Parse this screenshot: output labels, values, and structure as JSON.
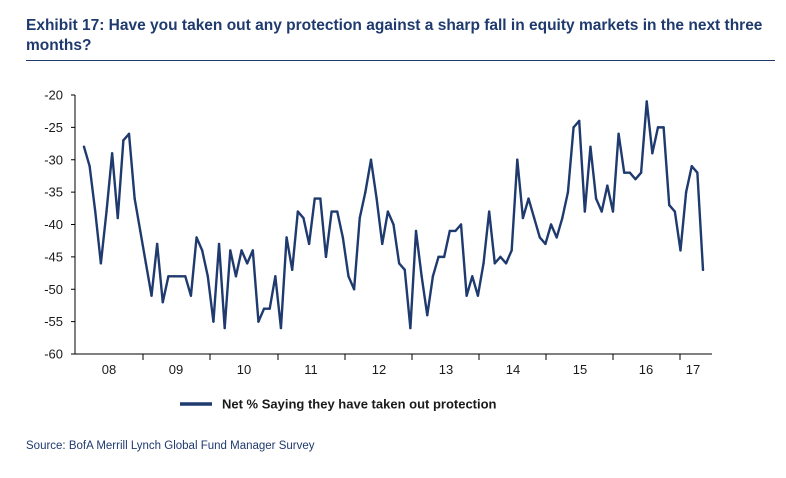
{
  "title": "Exhibit 17: Have you taken out any protection against a sharp fall in equity markets in the next three months?",
  "source": "Source: BofA Merrill Lynch Global Fund Manager Survey",
  "chart_data": {
    "type": "line",
    "series_color": "#1f3a6e",
    "ylim": [
      -60,
      -20
    ],
    "yticks": [
      -20,
      -25,
      -30,
      -35,
      -40,
      -45,
      -50,
      -55,
      -60
    ],
    "year_labels": [
      "08",
      "09",
      "10",
      "11",
      "12",
      "13",
      "14",
      "15",
      "16",
      "17"
    ],
    "legend_position": "bottom",
    "series": [
      {
        "name": "Net % Saying they have taken out protection",
        "values": [
          -28,
          -31,
          -38,
          -46,
          -38,
          -29,
          -39,
          -27,
          -26,
          -36,
          -41,
          -46,
          -51,
          -43,
          -52,
          -48,
          -48,
          -48,
          -48,
          -51,
          -42,
          -44,
          -48,
          -55,
          -43,
          -56,
          -44,
          -48,
          -44,
          -46,
          -44,
          -55,
          -53,
          -53,
          -48,
          -56,
          -42,
          -47,
          -38,
          -39,
          -43,
          -36,
          -36,
          -45,
          -38,
          -38,
          -42,
          -48,
          -50,
          -39,
          -35,
          -30,
          -36,
          -43,
          -38,
          -40,
          -46,
          -47,
          -56,
          -41,
          -48,
          -54,
          -48,
          -45,
          -45,
          -41,
          -41,
          -40,
          -51,
          -48,
          -51,
          -46,
          -38,
          -46,
          -45,
          -46,
          -44,
          -30,
          -39,
          -36,
          -39,
          -42,
          -43,
          -40,
          -42,
          -39,
          -35,
          -25,
          -24,
          -38,
          -28,
          -36,
          -38,
          -34,
          -38,
          -26,
          -32,
          -32,
          -33,
          -32,
          -21,
          -29,
          -25,
          -25,
          -37,
          -38,
          -44,
          -35,
          -31,
          -32,
          -47
        ]
      }
    ]
  }
}
